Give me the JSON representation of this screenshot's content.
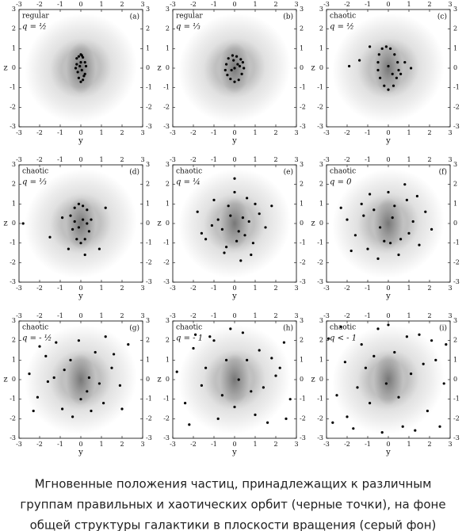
{
  "chart_data": [
    {
      "type": "scatter",
      "panel": "(a)",
      "orbit": "regular",
      "q": "q = ½",
      "xlabel": "y",
      "ylabel": "z",
      "xlim": [
        -3,
        3
      ],
      "ylim": [
        -3,
        3
      ],
      "xticks": [
        -3,
        -2,
        -1,
        0,
        1,
        2,
        3
      ],
      "yticks": [
        -3,
        -2,
        -1,
        0,
        1,
        2,
        3
      ],
      "color": "#000000",
      "x": [
        -0.2,
        -0.1,
        0,
        0.1,
        0.2,
        -0.15,
        0.15,
        0,
        -0.05,
        0.05,
        -0.25,
        0.25,
        0.1,
        -0.1,
        0,
        0.2,
        -0.2,
        0.05
      ],
      "values": [
        0.5,
        0.6,
        0.7,
        0.55,
        0.3,
        -0.2,
        -0.4,
        -0.7,
        0.1,
        -0.1,
        0,
        0.1,
        -0.6,
        -0.5,
        0.3,
        -0.3,
        0.2,
        0.65
      ]
    },
    {
      "type": "scatter",
      "panel": "(b)",
      "orbit": "regular",
      "q": "q = ⅓",
      "xlabel": "y",
      "ylabel": "z",
      "xlim": [
        -3,
        3
      ],
      "ylim": [
        -3,
        3
      ],
      "xticks": [
        -3,
        -2,
        -1,
        0,
        1,
        2,
        3
      ],
      "yticks": [
        -3,
        -2,
        -1,
        0,
        1,
        2,
        3
      ],
      "color": "#000000",
      "x": [
        -0.4,
        -0.3,
        -0.1,
        0.1,
        0.3,
        0.45,
        0.35,
        0.2,
        0,
        -0.2,
        -0.35,
        0,
        0.15,
        -0.15,
        0.4,
        -0.45,
        0.25,
        -0.05
      ],
      "values": [
        0.2,
        0.5,
        0.65,
        0.6,
        0.45,
        0,
        -0.3,
        -0.6,
        -0.7,
        -0.55,
        -0.35,
        0,
        0.2,
        -0.1,
        0.3,
        -0.1,
        0.1,
        0.4
      ]
    },
    {
      "type": "scatter",
      "panel": "(c)",
      "orbit": "chaotic",
      "q": "q = ½",
      "xlabel": "y",
      "ylabel": "z",
      "xlim": [
        -3,
        3
      ],
      "ylim": [
        -3,
        3
      ],
      "xticks": [
        -3,
        -2,
        -1,
        0,
        1,
        2,
        3
      ],
      "yticks": [
        -3,
        -2,
        -1,
        0,
        1,
        2,
        3
      ],
      "color": "#000000",
      "x": [
        -0.5,
        -0.45,
        -0.3,
        -0.1,
        0.1,
        0.3,
        0.45,
        0.5,
        0.4,
        0.25,
        0,
        -0.2,
        -0.4,
        -0.5,
        -1.9,
        -1.4,
        0.8,
        1.1,
        -0.9,
        0.6,
        0.0,
        0.2
      ],
      "values": [
        0.3,
        0.7,
        1.0,
        1.1,
        1.0,
        0.7,
        0.3,
        -0.1,
        -0.5,
        -0.9,
        -1.1,
        -0.9,
        -0.5,
        -0.1,
        0.1,
        0.4,
        0.3,
        0.0,
        1.1,
        -0.3,
        0.1,
        -0.3
      ]
    },
    {
      "type": "scatter",
      "panel": "(d)",
      "orbit": "chaotic",
      "q": "q = ⅓",
      "xlabel": "y",
      "ylabel": "z",
      "xlim": [
        -3,
        3
      ],
      "ylim": [
        -3,
        3
      ],
      "xticks": [
        -3,
        -2,
        -1,
        0,
        1,
        2,
        3
      ],
      "yticks": [
        -3,
        -2,
        -1,
        0,
        1,
        2,
        3
      ],
      "color": "#000000",
      "x": [
        -0.5,
        -0.3,
        -0.1,
        0.1,
        0.3,
        0.5,
        0.4,
        0.2,
        0,
        -0.2,
        -0.4,
        0.1,
        -0.1,
        0.3,
        -0.3,
        -0.9,
        -2.8,
        1.2,
        -1.5,
        0.9,
        -0.6,
        0.2
      ],
      "values": [
        0.4,
        0.8,
        1.0,
        0.9,
        0.7,
        0.2,
        -0.4,
        -0.8,
        -1.0,
        -0.8,
        -0.3,
        0.2,
        -0.2,
        0.0,
        0.1,
        0.3,
        0,
        0.8,
        -0.7,
        -1.3,
        -1.3,
        -1.6
      ]
    },
    {
      "type": "scatter",
      "panel": "(e)",
      "orbit": "chaotic",
      "q": "q = ¼",
      "xlabel": "y",
      "ylabel": "z",
      "xlim": [
        -3,
        3
      ],
      "ylim": [
        -3,
        3
      ],
      "xticks": [
        -3,
        -2,
        -1,
        0,
        1,
        2,
        3
      ],
      "yticks": [
        -3,
        -2,
        -1,
        0,
        1,
        2,
        3
      ],
      "color": "#000000",
      "x": [
        -1.8,
        -1.4,
        -1.0,
        -0.8,
        -0.5,
        -0.3,
        0,
        0.2,
        0.4,
        0.6,
        0.9,
        1.2,
        1.5,
        -0.6,
        0.3,
        0.7,
        -1.1,
        1.0,
        -0.2,
        0.1,
        0.5,
        -0.4,
        1.8,
        -1.6,
        0.0,
        0.8
      ],
      "values": [
        0.6,
        -0.8,
        1.2,
        0.2,
        -1.5,
        0.9,
        1.6,
        -0.4,
        0.3,
        1.3,
        -1.0,
        0.5,
        -0.2,
        -0.3,
        -1.9,
        0.1,
        -0.1,
        1.0,
        0.4,
        -0.9,
        -0.6,
        -1.2,
        0.9,
        -0.5,
        2.3,
        -1.6
      ]
    },
    {
      "type": "scatter",
      "panel": "(f)",
      "orbit": "chaotic",
      "q": "q = 0",
      "xlabel": "y",
      "ylabel": "z",
      "xlim": [
        -3,
        3
      ],
      "ylim": [
        -3,
        3
      ],
      "xticks": [
        -3,
        -2,
        -1,
        0,
        1,
        2,
        3
      ],
      "yticks": [
        -3,
        -2,
        -1,
        0,
        1,
        2,
        3
      ],
      "color": "#000000",
      "x": [
        -2.0,
        -1.6,
        -1.3,
        -1.0,
        -0.7,
        -0.4,
        0,
        0.3,
        0.6,
        0.9,
        1.2,
        1.5,
        1.8,
        -1.8,
        -0.9,
        0.5,
        1.4,
        -0.2,
        0.2,
        -1.2,
        0.8,
        2.1,
        -0.5,
        1.0,
        -2.3,
        0.1
      ],
      "values": [
        0.2,
        -0.6,
        1.0,
        -1.3,
        0.7,
        -0.2,
        1.6,
        0.9,
        -0.8,
        1.2,
        0.1,
        -1.1,
        0.6,
        -1.4,
        1.5,
        -1.6,
        1.4,
        -0.9,
        0.3,
        0.4,
        2.0,
        -0.3,
        -1.8,
        -0.5,
        0.8,
        -1.0
      ]
    },
    {
      "type": "scatter",
      "panel": "(g)",
      "orbit": "chaotic",
      "q": "q = - ½",
      "xlabel": "y",
      "ylabel": "z",
      "xlim": [
        -3,
        3
      ],
      "ylim": [
        -3,
        3
      ],
      "xticks": [
        -3,
        -2,
        -1,
        0,
        1,
        2,
        3
      ],
      "yticks": [
        -3,
        -2,
        -1,
        0,
        1,
        2,
        3
      ],
      "color": "#000000",
      "x": [
        -2.5,
        -2.1,
        -1.7,
        -1.3,
        -0.9,
        -0.5,
        -0.1,
        0.3,
        0.7,
        1.1,
        1.5,
        1.9,
        2.3,
        -2.0,
        -1.2,
        -0.4,
        0.4,
        1.2,
        2.0,
        -1.6,
        0.0,
        0.9,
        1.6,
        -0.8,
        0.5,
        -2.3
      ],
      "values": [
        0.3,
        -0.9,
        1.2,
        0.1,
        -1.5,
        1.0,
        2.0,
        -0.6,
        1.4,
        -1.2,
        0.6,
        -0.3,
        1.8,
        1.7,
        1.9,
        -1.9,
        0.1,
        2.2,
        -1.5,
        -0.1,
        -1.0,
        -0.2,
        1.3,
        0.5,
        -1.6,
        -1.6
      ]
    },
    {
      "type": "scatter",
      "panel": "(h)",
      "orbit": "chaotic",
      "q": "q = - 1",
      "xlabel": "y",
      "ylabel": "z",
      "xlim": [
        -3,
        3
      ],
      "ylim": [
        -3,
        3
      ],
      "xticks": [
        -3,
        -2,
        -1,
        0,
        1,
        2,
        3
      ],
      "yticks": [
        -3,
        -2,
        -1,
        0,
        1,
        2,
        3
      ],
      "color": "#000000",
      "x": [
        -2.8,
        -2.4,
        -2.0,
        -1.6,
        -1.2,
        -0.8,
        -0.4,
        0,
        0.4,
        0.8,
        1.2,
        1.6,
        2.0,
        2.4,
        2.7,
        -2.2,
        -1.4,
        -0.6,
        0.2,
        1.0,
        1.8,
        2.5,
        -1.9,
        -0.2,
        0.6,
        1.4,
        -1.0,
        2.2
      ],
      "values": [
        0.4,
        -1.2,
        1.6,
        -0.3,
        2.2,
        -2.0,
        1.0,
        -1.4,
        2.4,
        -0.6,
        1.5,
        -2.2,
        0.2,
        1.9,
        -1.0,
        -2.3,
        0.6,
        -0.8,
        0.0,
        -1.8,
        1.1,
        -2.0,
        2.3,
        2.6,
        1.0,
        -0.4,
        2.0,
        0.6
      ]
    },
    {
      "type": "scatter",
      "panel": "(i)",
      "orbit": "chaotic",
      "q": "q < - 1",
      "xlabel": "y",
      "ylabel": "z",
      "xlim": [
        -3,
        3
      ],
      "ylim": [
        -3,
        3
      ],
      "xticks": [
        -3,
        -2,
        -1,
        0,
        1,
        2,
        3
      ],
      "yticks": [
        -3,
        -2,
        -1,
        0,
        1,
        2,
        3
      ],
      "color": "#000000",
      "x": [
        -2.9,
        -2.5,
        -2.1,
        -1.7,
        -1.3,
        -0.9,
        -0.5,
        -0.1,
        0.3,
        0.7,
        1.1,
        1.5,
        1.9,
        2.3,
        2.7,
        -2.7,
        -2.0,
        -1.1,
        -0.3,
        0.5,
        1.3,
        2.1,
        2.8,
        -1.5,
        0.0,
        0.9,
        1.7,
        -2.3,
        2.5,
        -0.7
      ],
      "values": [
        2.1,
        -0.8,
        0.9,
        -2.5,
        1.8,
        -1.2,
        2.6,
        -0.2,
        1.4,
        -2.4,
        0.3,
        2.3,
        -1.6,
        1.0,
        -0.2,
        -2.2,
        -1.9,
        0.6,
        -2.7,
        -0.9,
        -2.6,
        2.0,
        1.8,
        -0.4,
        2.8,
        2.2,
        0.8,
        2.7,
        -2.4,
        1.2
      ]
    }
  ],
  "caption": [
    "Мгновенные положения частиц, принадлежащих к различным",
    "группам правильных и хаотических орбит (черные точки), на фоне",
    "общей структуры галактики в плоскости вращения (серый фон)"
  ]
}
